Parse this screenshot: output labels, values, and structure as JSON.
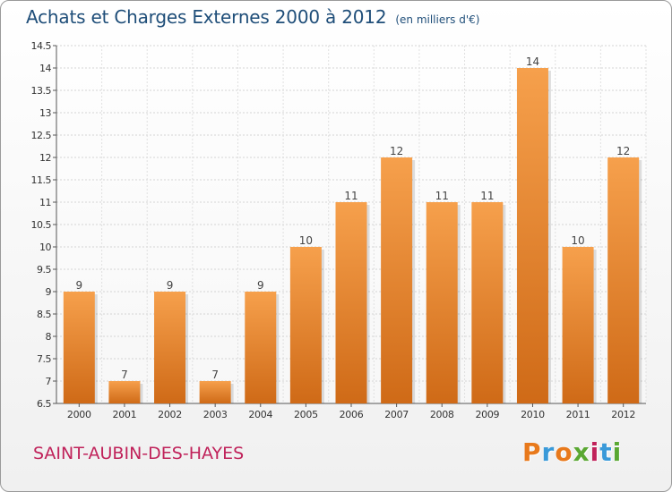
{
  "title": "Achats et Charges Externes 2000 à 2012",
  "subtitle": "(en milliers d'€)",
  "footer": {
    "commune": "SAINT-AUBIN-DES-HAYES",
    "brand": "Proxiti",
    "brand_letters": [
      "P",
      "r",
      "o",
      "x",
      "i",
      "t",
      "i"
    ],
    "brand_colors": [
      "#e8791b",
      "#3a9ad9",
      "#e8791b",
      "#5aa832",
      "#c0225a",
      "#3a9ad9",
      "#5aa832"
    ]
  },
  "chart_data": {
    "type": "bar",
    "categories": [
      "2000",
      "2001",
      "2002",
      "2003",
      "2004",
      "2005",
      "2006",
      "2007",
      "2008",
      "2009",
      "2010",
      "2011",
      "2012"
    ],
    "values": [
      9,
      7,
      9,
      7,
      9,
      10,
      11,
      12,
      11,
      11,
      14,
      10,
      12
    ],
    "data_labels": [
      "9",
      "7",
      "9",
      "7",
      "9",
      "10",
      "11",
      "12",
      "11",
      "11",
      "14",
      "10",
      "12"
    ],
    "ylim": [
      6.5,
      14.5
    ],
    "yticks": [
      6.5,
      7,
      7.5,
      8,
      8.5,
      9,
      9.5,
      10,
      10.5,
      11,
      11.5,
      12,
      12.5,
      13,
      13.5,
      14,
      14.5
    ],
    "ytick_labels": [
      "6.5",
      "7",
      "7.5",
      "8",
      "8.5",
      "9",
      "9.5",
      "10",
      "10.5",
      "11",
      "11.5",
      "12",
      "12.5",
      "13",
      "13.5",
      "14",
      "14.5"
    ],
    "grid": true,
    "bar_color_top": "#f6a04c",
    "bar_color_bottom": "#cf6a17"
  }
}
